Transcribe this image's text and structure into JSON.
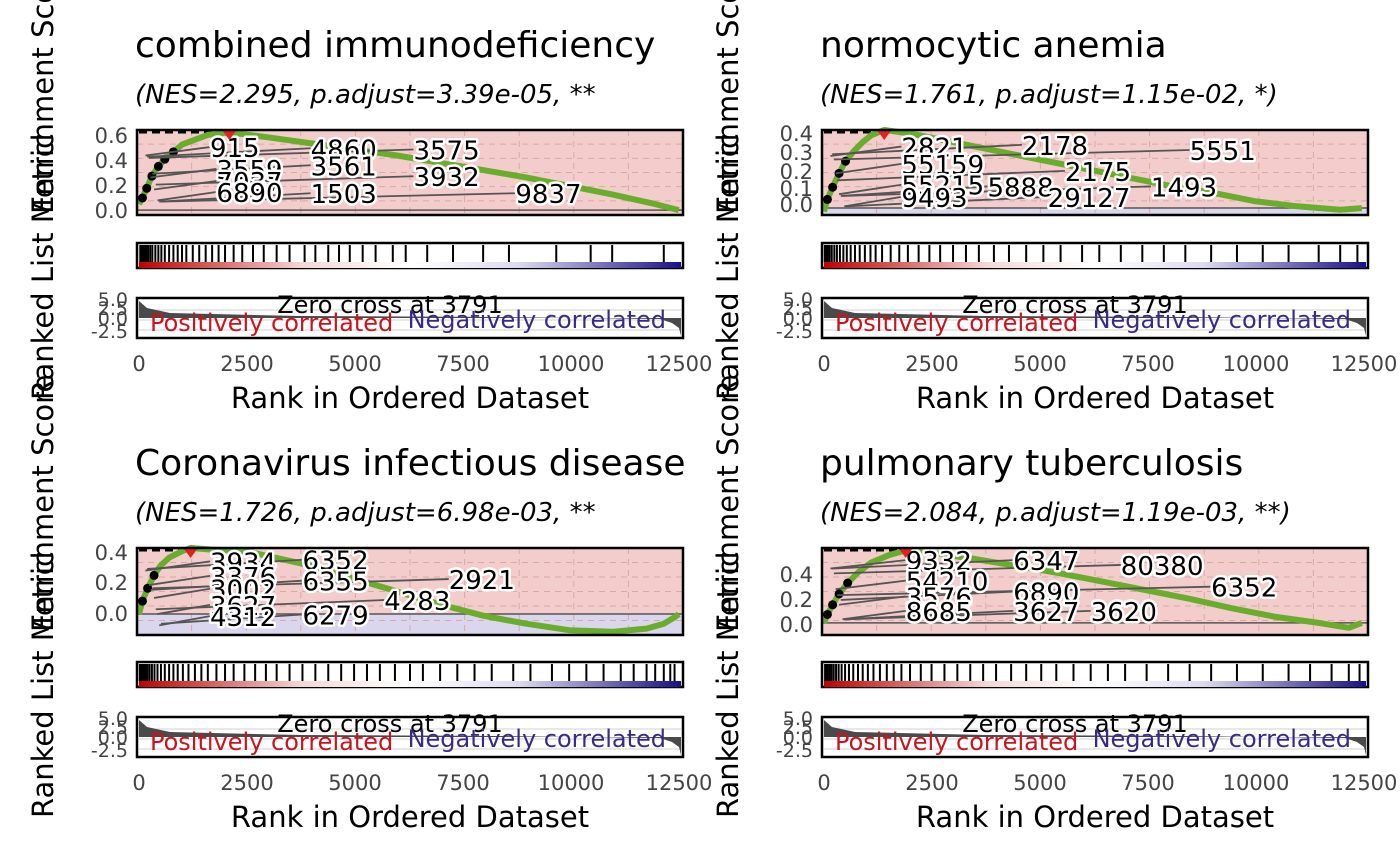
{
  "figure": {
    "xlabel": "Rank in Ordered Dataset",
    "ylabel_top": "Enrichment Score",
    "ylabel_bottom": "Ranked List Metric",
    "zero_cross_label": "Zero cross at 3791",
    "pos_label": "Positively correlated",
    "neg_label": "Negatively correlated"
  },
  "colors": {
    "curve": "#6aad2c",
    "pos_bg": "#f3cccc",
    "neg_bg": "#d9d6ee",
    "pos_text": "#c8141e",
    "neg_text": "#3b2a85",
    "gradient_red": "#c00000",
    "gradient_blue": "#1a0f8a",
    "peak": "#e3201c"
  },
  "chart_data": [
    {
      "type": "line",
      "title": "combined immunodeficiency",
      "subtitle": "(NES=2.295, p.adjust=3.39e-05, **",
      "x_ticks": [
        "0",
        "2500",
        "5000",
        "7500",
        "10000",
        "12500"
      ],
      "y_ticks": [
        "0.0",
        "0.2",
        "0.4",
        "0.6"
      ],
      "metric_ticks": [
        "5.0",
        "2.5",
        "0.0",
        "-2.5"
      ],
      "xlim": [
        0,
        12600
      ],
      "ylim": [
        -0.04,
        0.66
      ],
      "background": "pos",
      "peak": {
        "x": 2100,
        "y": 0.64
      },
      "es_curve": [
        [
          0,
          0.05
        ],
        [
          80,
          0.1
        ],
        [
          180,
          0.18
        ],
        [
          300,
          0.28
        ],
        [
          450,
          0.36
        ],
        [
          600,
          0.42
        ],
        [
          800,
          0.48
        ],
        [
          1000,
          0.54
        ],
        [
          1300,
          0.58
        ],
        [
          1600,
          0.62
        ],
        [
          2100,
          0.64
        ],
        [
          3000,
          0.6
        ],
        [
          4000,
          0.55
        ],
        [
          5000,
          0.5
        ],
        [
          6000,
          0.45
        ],
        [
          7000,
          0.39
        ],
        [
          8000,
          0.33
        ],
        [
          9000,
          0.27
        ],
        [
          10000,
          0.2
        ],
        [
          11000,
          0.13
        ],
        [
          12000,
          0.05
        ],
        [
          12550,
          0.0
        ]
      ],
      "gene_labels": [
        {
          "text": "915",
          "x": 1650,
          "y": 0.47
        },
        {
          "text": "4860",
          "x": 3990,
          "y": 0.46
        },
        {
          "text": "3575",
          "x": 6380,
          "y": 0.45
        },
        {
          "text": "3559",
          "x": 1800,
          "y": 0.29
        },
        {
          "text": "3561",
          "x": 3990,
          "y": 0.32
        },
        {
          "text": "7037",
          "x": 1800,
          "y": 0.19
        },
        {
          "text": "3932",
          "x": 6380,
          "y": 0.23
        },
        {
          "text": "6890",
          "x": 1800,
          "y": 0.1
        },
        {
          "text": "1503",
          "x": 3990,
          "y": 0.09
        },
        {
          "text": "9837",
          "x": 8750,
          "y": 0.09
        }
      ],
      "hits": [
        30,
        60,
        95,
        130,
        170,
        210,
        260,
        310,
        380,
        450,
        520,
        600,
        700,
        800,
        900,
        1000,
        1100,
        1250,
        1400,
        1550,
        1700,
        1850,
        2000,
        2200,
        2400,
        2650,
        2900,
        3200,
        3500,
        3850,
        4100,
        4400,
        4650,
        4900,
        5200,
        5500,
        5900,
        6200,
        6700,
        7300,
        8000,
        8600,
        9700,
        10500,
        11000,
        12200
      ]
    },
    {
      "type": "line",
      "title": "normocytic anemia",
      "subtitle": "(NES=1.761, p.adjust=1.15e-02, *)",
      "x_ticks": [
        "0",
        "2500",
        "5000",
        "7500",
        "10000",
        "12500"
      ],
      "y_ticks": [
        "0.0",
        "0.1",
        "0.2",
        "0.3",
        "0.4"
      ],
      "metric_ticks": [
        "5.0",
        "2.5",
        "0.0",
        "-2.5"
      ],
      "xlim": [
        0,
        12600
      ],
      "ylim": [
        -0.04,
        0.45
      ],
      "background": "split",
      "split": 0.0,
      "peak": {
        "x": 1400,
        "y": 0.45
      },
      "es_curve": [
        [
          0,
          -0.02
        ],
        [
          80,
          0.05
        ],
        [
          200,
          0.12
        ],
        [
          350,
          0.2
        ],
        [
          500,
          0.27
        ],
        [
          700,
          0.33
        ],
        [
          900,
          0.38
        ],
        [
          1100,
          0.42
        ],
        [
          1400,
          0.45
        ],
        [
          2000,
          0.43
        ],
        [
          3000,
          0.38
        ],
        [
          4000,
          0.33
        ],
        [
          5000,
          0.28
        ],
        [
          6000,
          0.23
        ],
        [
          7000,
          0.18
        ],
        [
          8000,
          0.13
        ],
        [
          9000,
          0.09
        ],
        [
          10000,
          0.04
        ],
        [
          11000,
          0.01
        ],
        [
          12000,
          -0.01
        ],
        [
          12500,
          0.0
        ]
      ],
      "gene_labels": [
        {
          "text": "2821",
          "x": 1800,
          "y": 0.32
        },
        {
          "text": "2178",
          "x": 4600,
          "y": 0.33
        },
        {
          "text": "5551",
          "x": 8500,
          "y": 0.3
        },
        {
          "text": "55159",
          "x": 1800,
          "y": 0.22
        },
        {
          "text": "2175",
          "x": 5600,
          "y": 0.18
        },
        {
          "text": "55215",
          "x": 1800,
          "y": 0.1
        },
        {
          "text": "5888",
          "x": 3800,
          "y": 0.09
        },
        {
          "text": "1493",
          "x": 7600,
          "y": 0.09
        },
        {
          "text": "9493",
          "x": 1800,
          "y": 0.03
        },
        {
          "text": "29127",
          "x": 5200,
          "y": 0.03
        }
      ],
      "hits": [
        20,
        50,
        90,
        130,
        180,
        240,
        300,
        370,
        450,
        530,
        620,
        720,
        830,
        950,
        1080,
        1200,
        1350,
        1550,
        1750,
        1950,
        2200,
        2450,
        2700,
        3000,
        3300,
        3600,
        3950,
        4300,
        4700,
        5100,
        5500,
        6000,
        6400,
        6900,
        7400,
        7900,
        8400,
        9000,
        9600,
        10200,
        10800,
        11500,
        12000,
        12400
      ]
    },
    {
      "type": "line",
      "title": "Coronavirus infectious disease",
      "subtitle": "(NES=1.726, p.adjust=6.98e-03, **",
      "x_ticks": [
        "0",
        "2500",
        "5000",
        "7500",
        "10000",
        "12500"
      ],
      "y_ticks": [
        "0.0",
        "0.2",
        "0.4"
      ],
      "metric_ticks": [
        "5.0",
        "2.5",
        "0.0",
        "-2.5"
      ],
      "xlim": [
        0,
        12600
      ],
      "ylim": [
        -0.13,
        0.41
      ],
      "background": "split",
      "split": 0.0,
      "peak": {
        "x": 1200,
        "y": 0.41
      },
      "es_curve": [
        [
          0,
          0.0
        ],
        [
          80,
          0.08
        ],
        [
          200,
          0.16
        ],
        [
          350,
          0.24
        ],
        [
          500,
          0.3
        ],
        [
          700,
          0.35
        ],
        [
          1000,
          0.39
        ],
        [
          1200,
          0.41
        ],
        [
          1700,
          0.4
        ],
        [
          2500,
          0.39
        ],
        [
          3000,
          0.36
        ],
        [
          4000,
          0.3
        ],
        [
          5000,
          0.22
        ],
        [
          6000,
          0.14
        ],
        [
          7000,
          0.06
        ],
        [
          8000,
          -0.01
        ],
        [
          9000,
          -0.06
        ],
        [
          10000,
          -0.1
        ],
        [
          11000,
          -0.11
        ],
        [
          11800,
          -0.09
        ],
        [
          12200,
          -0.06
        ],
        [
          12450,
          -0.02
        ],
        [
          12550,
          0.0
        ]
      ],
      "gene_labels": [
        {
          "text": "3934",
          "x": 1650,
          "y": 0.29
        },
        {
          "text": "6352",
          "x": 3800,
          "y": 0.3
        },
        {
          "text": "3376",
          "x": 1650,
          "y": 0.2
        },
        {
          "text": "6355",
          "x": 3800,
          "y": 0.17
        },
        {
          "text": "2921",
          "x": 7200,
          "y": 0.18
        },
        {
          "text": "3002",
          "x": 1650,
          "y": 0.12
        },
        {
          "text": "4283",
          "x": 5700,
          "y": 0.05
        },
        {
          "text": "3627",
          "x": 1650,
          "y": 0.02
        },
        {
          "text": "4312",
          "x": 1650,
          "y": -0.05
        },
        {
          "text": "6279",
          "x": 3800,
          "y": -0.04
        }
      ],
      "hits": [
        20,
        45,
        75,
        110,
        150,
        195,
        245,
        300,
        360,
        430,
        510,
        600,
        700,
        800,
        900,
        1020,
        1150,
        1300,
        1450,
        1600,
        1800,
        2000,
        2200,
        2450,
        2700,
        2950,
        3200,
        3500,
        3800,
        4100,
        4400,
        4700,
        5000,
        5300,
        5600,
        5950,
        6300,
        6600,
        7000,
        7400,
        7800,
        8200,
        8700,
        9100,
        9600,
        10000,
        10400,
        10800,
        11200,
        11500,
        11800,
        12000,
        12200,
        12350,
        12450
      ]
    },
    {
      "type": "line",
      "title": "pulmonary tuberculosis",
      "subtitle": "(NES=2.084, p.adjust=1.19e-03, **)",
      "x_ticks": [
        "0",
        "2500",
        "5000",
        "7500",
        "10000",
        "12500"
      ],
      "y_ticks": [
        "0.0",
        "0.2",
        "0.4"
      ],
      "metric_ticks": [
        "5.0",
        "2.5",
        "0.0",
        "-2.5"
      ],
      "xlim": [
        0,
        12600
      ],
      "ylim": [
        -0.1,
        0.62
      ],
      "background": "pos",
      "peak": {
        "x": 1900,
        "y": 0.6
      },
      "es_curve": [
        [
          0,
          0.0
        ],
        [
          80,
          0.07
        ],
        [
          200,
          0.15
        ],
        [
          350,
          0.24
        ],
        [
          550,
          0.33
        ],
        [
          800,
          0.42
        ],
        [
          1100,
          0.5
        ],
        [
          1500,
          0.56
        ],
        [
          1900,
          0.6
        ],
        [
          2500,
          0.58
        ],
        [
          3500,
          0.53
        ],
        [
          4500,
          0.47
        ],
        [
          5500,
          0.41
        ],
        [
          6500,
          0.34
        ],
        [
          7500,
          0.27
        ],
        [
          8500,
          0.2
        ],
        [
          9500,
          0.12
        ],
        [
          10500,
          0.05
        ],
        [
          11500,
          0.0
        ],
        [
          12200,
          -0.04
        ],
        [
          12500,
          0.0
        ]
      ],
      "gene_labels": [
        {
          "text": "9332",
          "x": 1900,
          "y": 0.47
        },
        {
          "text": "6347",
          "x": 4400,
          "y": 0.47
        },
        {
          "text": "80380",
          "x": 6900,
          "y": 0.43
        },
        {
          "text": "54210",
          "x": 1900,
          "y": 0.3
        },
        {
          "text": "6352",
          "x": 9000,
          "y": 0.25
        },
        {
          "text": "3576",
          "x": 1900,
          "y": 0.17
        },
        {
          "text": "6890",
          "x": 4400,
          "y": 0.21
        },
        {
          "text": "8685",
          "x": 1900,
          "y": 0.05
        },
        {
          "text": "3627",
          "x": 4400,
          "y": 0.05
        },
        {
          "text": "3620",
          "x": 6200,
          "y": 0.05
        }
      ],
      "hits": [
        25,
        55,
        90,
        130,
        175,
        225,
        280,
        340,
        410,
        490,
        580,
        680,
        790,
        900,
        1020,
        1150,
        1300,
        1460,
        1620,
        1800,
        2000,
        2250,
        2500,
        2800,
        3100,
        3400,
        3700,
        4000,
        4350,
        4700,
        5050,
        5400,
        5800,
        6200,
        6600,
        7000,
        7500,
        8000,
        8500,
        9000,
        9600,
        10200,
        10800,
        11300,
        11800,
        12200,
        12450
      ]
    }
  ]
}
